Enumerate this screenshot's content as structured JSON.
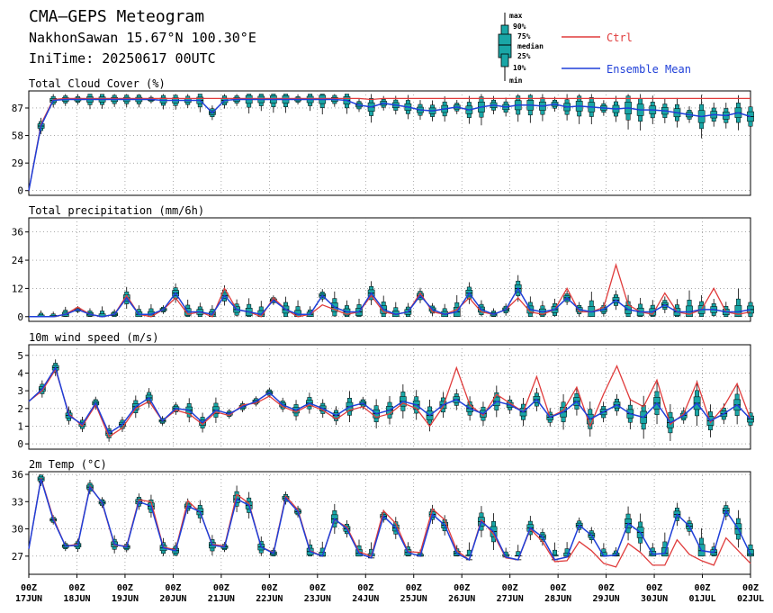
{
  "header": {
    "title": "CMA–GEPS Meteogram",
    "location": "NakhonSawan 15.67°N 100.30°E",
    "init_time": "IniTime: 20250617 00UTC"
  },
  "legend": {
    "box_labels": [
      "max",
      "90%",
      "75%",
      "median",
      "25%",
      "10%",
      "min"
    ],
    "ctrl_label": "Ctrl",
    "mean_label": "Ensemble Mean",
    "colors": {
      "ctrl": "#e03c3c",
      "mean": "#1f3fd8",
      "box": "#1aa6a6",
      "whisker": "#000000"
    }
  },
  "x_axis": {
    "tick_labels": [
      {
        "top": "00Z",
        "bottom": "17JUN"
      },
      {
        "top": "00Z",
        "bottom": "18JUN"
      },
      {
        "top": "00Z",
        "bottom": "19JUN"
      },
      {
        "top": "00Z",
        "bottom": "20JUN"
      },
      {
        "top": "00Z",
        "bottom": "21JUN"
      },
      {
        "top": "00Z",
        "bottom": "22JUN"
      },
      {
        "top": "00Z",
        "bottom": "23JUN"
      },
      {
        "top": "00Z",
        "bottom": "24JUN"
      },
      {
        "top": "00Z",
        "bottom": "25JUN"
      },
      {
        "top": "00Z",
        "bottom": "26JUN"
      },
      {
        "top": "00Z",
        "bottom": "27JUN"
      },
      {
        "top": "00Z",
        "bottom": "28JUN"
      },
      {
        "top": "00Z",
        "bottom": "29JUN"
      },
      {
        "top": "00Z",
        "bottom": "30JUN"
      },
      {
        "top": "00Z",
        "bottom": "01JUL"
      },
      {
        "top": "00Z",
        "bottom": "02JUL"
      }
    ]
  },
  "chart_data": [
    {
      "type": "line",
      "title": "Total Cloud Cover (%)",
      "ylim": [
        -5,
        105
      ],
      "yticks": [
        0,
        29,
        58,
        87
      ],
      "grid": true,
      "series": [
        {
          "name": "Ctrl",
          "values": [
            0,
            70,
            96,
            97,
            97,
            97,
            97,
            97,
            97,
            97,
            97,
            97,
            97,
            97,
            97,
            97,
            97,
            97,
            97,
            97,
            97,
            97,
            97,
            97,
            97,
            97,
            97,
            97,
            96,
            97,
            97,
            97,
            97,
            97,
            97,
            97,
            97,
            97,
            97,
            97,
            97,
            97,
            97,
            97,
            97,
            97,
            97,
            97,
            97,
            97,
            97,
            97,
            97,
            97,
            97,
            97,
            97,
            97,
            97,
            97
          ]
        },
        {
          "name": "Ensemble Mean",
          "values": [
            0,
            68,
            95,
            96,
            96,
            96,
            96,
            96,
            96,
            96,
            96,
            95,
            95,
            95,
            95,
            82,
            95,
            96,
            96,
            96,
            96,
            96,
            96,
            96,
            96,
            96,
            95,
            90,
            88,
            92,
            90,
            88,
            85,
            84,
            86,
            88,
            85,
            88,
            90,
            88,
            90,
            90,
            89,
            91,
            88,
            89,
            88,
            87,
            86,
            87,
            85,
            85,
            84,
            82,
            80,
            78,
            80,
            79,
            82,
            78
          ]
        }
      ]
    },
    {
      "type": "line",
      "title": "Total precipitation (mm/6h)",
      "ylim": [
        -2,
        42
      ],
      "yticks": [
        0,
        12,
        24,
        36
      ],
      "grid": true,
      "series": [
        {
          "name": "Ctrl",
          "values": [
            0,
            0,
            0,
            1,
            4,
            1,
            0,
            1,
            9,
            1,
            0,
            3,
            8,
            1,
            2,
            0,
            12,
            3,
            2,
            0,
            8,
            3,
            0,
            1,
            5,
            3,
            1,
            2,
            9,
            2,
            1,
            2,
            10,
            2,
            1,
            3,
            8,
            2,
            1,
            3,
            8,
            2,
            1,
            3,
            12,
            2,
            2,
            4,
            22,
            5,
            2,
            1,
            10,
            2,
            1,
            3,
            12,
            2,
            1,
            2
          ]
        },
        {
          "name": "Ensemble Mean",
          "values": [
            0,
            0,
            0,
            1,
            3,
            1,
            0,
            1,
            8,
            1,
            1,
            3,
            10,
            2,
            2,
            1,
            9,
            3,
            2,
            1,
            7,
            3,
            1,
            1,
            9,
            4,
            2,
            2,
            10,
            3,
            1,
            2,
            9,
            3,
            1,
            2,
            10,
            3,
            1,
            3,
            12,
            3,
            2,
            3,
            8,
            3,
            2,
            3,
            7,
            3,
            2,
            2,
            5,
            2,
            2,
            3,
            3,
            2,
            2,
            3
          ]
        }
      ]
    },
    {
      "type": "line",
      "title": "10m wind speed (m/s)",
      "ylim": [
        -0.3,
        5.6
      ],
      "yticks": [
        0,
        1,
        2,
        3,
        4,
        5
      ],
      "grid": true,
      "series": [
        {
          "name": "Ctrl",
          "values": [
            2.4,
            3.0,
            4.2,
            1.7,
            1.0,
            2.2,
            0.4,
            0.9,
            2.0,
            2.4,
            1.3,
            1.9,
            1.7,
            1.1,
            1.8,
            1.6,
            2.2,
            2.3,
            2.7,
            2.1,
            1.8,
            2.2,
            1.9,
            1.4,
            1.9,
            2.1,
            1.5,
            1.7,
            2.3,
            2.0,
            1.0,
            2.1,
            4.3,
            2.2,
            1.6,
            2.8,
            2.3,
            1.8,
            3.8,
            1.5,
            1.9,
            3.2,
            1.0,
            2.8,
            4.4,
            2.5,
            2.1,
            3.6,
            1.1,
            1.7,
            3.5,
            1.2,
            2.1,
            3.4,
            1.4
          ]
        },
        {
          "name": "Ensemble Mean",
          "values": [
            2.4,
            3.1,
            4.3,
            1.6,
            1.1,
            2.3,
            0.6,
            1.1,
            2.1,
            2.6,
            1.3,
            2.0,
            1.9,
            1.2,
            1.9,
            1.7,
            2.1,
            2.4,
            2.9,
            2.2,
            1.9,
            2.3,
            2.0,
            1.6,
            2.1,
            2.3,
            1.7,
            1.9,
            2.4,
            2.2,
            1.6,
            2.2,
            2.5,
            2.0,
            1.7,
            2.4,
            2.2,
            1.8,
            2.5,
            1.5,
            1.8,
            2.4,
            1.4,
            1.8,
            2.2,
            1.7,
            1.5,
            2.3,
            1.2,
            1.6,
            2.3,
            1.3,
            1.7,
            2.2,
            1.4
          ]
        }
      ]
    },
    {
      "type": "line",
      "title": "2m Temp (°C)",
      "ylim": [
        25,
        36.3
      ],
      "yticks": [
        27,
        30,
        33,
        36
      ],
      "grid": true,
      "series": [
        {
          "name": "Ctrl",
          "values": [
            27.8,
            35.6,
            31.2,
            28.1,
            28.3,
            34.7,
            32.8,
            28.2,
            28.1,
            33.2,
            33.0,
            28.0,
            27.7,
            33.1,
            31.8,
            28.3,
            28.1,
            33.8,
            32.8,
            28.0,
            27.4,
            33.6,
            32.1,
            27.6,
            27.0,
            31.0,
            30.2,
            27.5,
            27.0,
            32.0,
            30.6,
            27.5,
            27.4,
            32.2,
            31.0,
            27.6,
            26.6,
            31.0,
            29.4,
            26.8,
            26.6,
            30.0,
            28.6,
            26.4,
            26.5,
            28.6,
            27.6,
            26.2,
            25.8,
            28.4,
            27.4,
            26.0,
            26.0,
            28.8,
            27.2,
            26.5,
            26.0,
            29.0,
            27.6,
            26.2
          ]
        },
        {
          "name": "Ensemble Mean",
          "values": [
            27.8,
            35.5,
            31.0,
            28.1,
            28.2,
            34.6,
            32.9,
            28.3,
            28.0,
            33.0,
            32.5,
            27.9,
            27.6,
            32.5,
            31.9,
            28.2,
            28.0,
            33.3,
            32.6,
            28.0,
            27.3,
            33.4,
            31.9,
            27.5,
            27.0,
            31.1,
            30.0,
            27.3,
            26.8,
            31.4,
            30.1,
            27.4,
            27.0,
            31.6,
            30.4,
            27.3,
            26.6,
            30.8,
            29.7,
            26.9,
            26.6,
            30.1,
            29.1,
            26.6,
            26.9,
            30.4,
            29.3,
            27.0,
            27.1,
            30.6,
            29.6,
            27.2,
            27.3,
            31.6,
            30.3,
            27.6,
            27.4,
            32.0,
            30.0,
            27.2
          ]
        }
      ]
    }
  ]
}
